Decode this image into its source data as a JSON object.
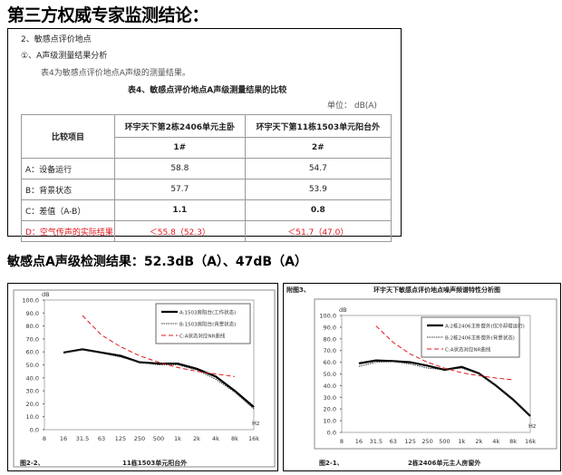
{
  "title": "第三方权威专家监测结论：",
  "doc": {
    "section": "2、敏感点评价地点",
    "subsection": "①、A声级测量结果分析",
    "intro": "表4为敏感点评价地点A声级的测量结果。",
    "table_title": "表4、敏感点评价地点A声级测量结果的比较",
    "unit": "单位： dB(A)",
    "headers": {
      "item": "比较项目",
      "col1": "环宇天下第2栋2406单元主卧",
      "col2": "环宇天下第11栋1503单元阳台外",
      "id1": "1#",
      "id2": "2#"
    },
    "rows": [
      {
        "label": "A：设备运行",
        "v1": "58.8",
        "v2": "54.7"
      },
      {
        "label": "B：背景状态",
        "v1": "57.7",
        "v2": "53.9"
      },
      {
        "label": "C：差值（A-B）",
        "v1": "1.1",
        "v2": "0.8"
      },
      {
        "label": "D：空气传声的实际结果",
        "v1": "＜55.8（52.3）",
        "v2": "＜51.7（47.0）"
      }
    ]
  },
  "subtitle": "敏感点A声级检测结果：52.3dB（A）、47dB（A）",
  "colors": {
    "red": "#e0141b",
    "black": "#000000"
  },
  "chart_data": [
    {
      "type": "line",
      "caption_left": "图2-2、",
      "caption": "11栋1503单元阳台外",
      "ylabel": "dB",
      "xlabel": "Hz",
      "ylim": [
        0,
        100
      ],
      "y_ticks": [
        "0.0",
        "10.0",
        "20.0",
        "30.0",
        "40.0",
        "50.0",
        "60.0",
        "70.0",
        "80.0",
        "90.0",
        "100.0"
      ],
      "categories": [
        "8",
        "16",
        "31.5",
        "63",
        "125",
        "250",
        "500",
        "1k",
        "2k",
        "4k",
        "8k",
        "16k"
      ],
      "series": [
        {
          "name": "A:1503房阳台(工作状态)",
          "style": "solid",
          "values": [
            null,
            59.5,
            62,
            59.5,
            57,
            52,
            51,
            51,
            47,
            41,
            30,
            17.5
          ]
        },
        {
          "name": "B:1503房阳台(背景状态)",
          "style": "dotted",
          "values": [
            null,
            59.5,
            61.5,
            59,
            56,
            52,
            50,
            50,
            46,
            39,
            29,
            16
          ]
        },
        {
          "name": "C:A状态对应NR曲线",
          "style": "dashed-red",
          "values": [
            null,
            null,
            88,
            73,
            64,
            57,
            52,
            48,
            45,
            43,
            41,
            null
          ]
        }
      ]
    },
    {
      "type": "line",
      "header_left": "附图3、",
      "title": "环宇天下敏感点评价地点噪声频谱特性分析图",
      "caption_left": "图2-1、",
      "caption": "2栋2406单元主人房窗外",
      "ylabel": "dB",
      "xlabel": "Hz",
      "ylim": [
        0,
        100
      ],
      "y_ticks": [
        "0.0",
        "10.0",
        "20.0",
        "30.0",
        "40.0",
        "50.0",
        "60.0",
        "70.0",
        "80.0",
        "90.0",
        "100.0"
      ],
      "categories": [
        "8",
        "16",
        "31.5",
        "63",
        "125",
        "250",
        "500",
        "1k",
        "2k",
        "4k",
        "8k",
        "16k"
      ],
      "series": [
        {
          "name": "A:2栋2406主卧窗外(仅冷却塔运行)",
          "style": "solid",
          "values": [
            null,
            59,
            61.5,
            61,
            60,
            57,
            53.5,
            56,
            50.5,
            40,
            28,
            14
          ]
        },
        {
          "name": "B:2栋2406主卧窗外(背景状态)",
          "style": "dotted",
          "values": [
            null,
            56.5,
            60,
            60.5,
            58.5,
            55,
            53.5,
            55,
            50,
            40,
            28,
            14
          ]
        },
        {
          "name": "C:A状态对应NR曲线",
          "style": "dashed-red",
          "values": [
            null,
            null,
            91,
            77,
            67,
            60,
            55,
            51,
            48.5,
            46.5,
            45,
            null
          ]
        }
      ]
    }
  ]
}
